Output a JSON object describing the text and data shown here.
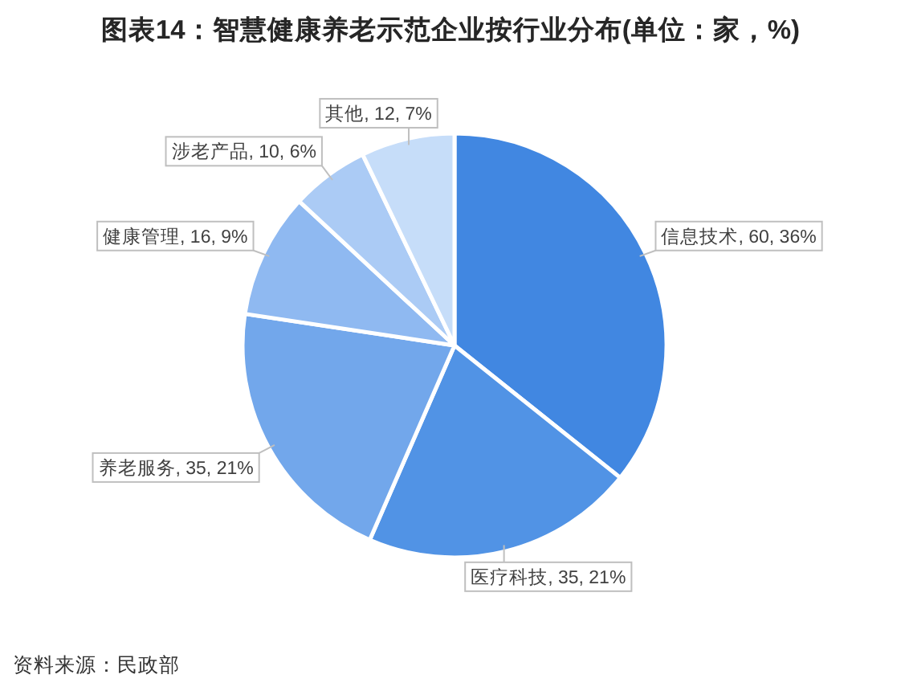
{
  "chart_data": {
    "type": "pie",
    "title": "图表14：智慧健康养老示范企业按行业分布(单位：家，%)",
    "categories": [
      "信息技术",
      "医疗科技",
      "养老服务",
      "健康管理",
      "涉老产品",
      "其他"
    ],
    "values": [
      60,
      35,
      35,
      16,
      10,
      12
    ],
    "value_labels": [
      "60, 36%",
      "35, 21%",
      "35, 21%",
      "16, 9%",
      "10, 6%",
      "12, 7%"
    ],
    "colors": [
      "#4187e1",
      "#5193e5",
      "#72a7eb",
      "#8fb9f1",
      "#abcbf5",
      "#c6ddf9"
    ],
    "annotations": [
      "资料来源：民政部"
    ]
  }
}
